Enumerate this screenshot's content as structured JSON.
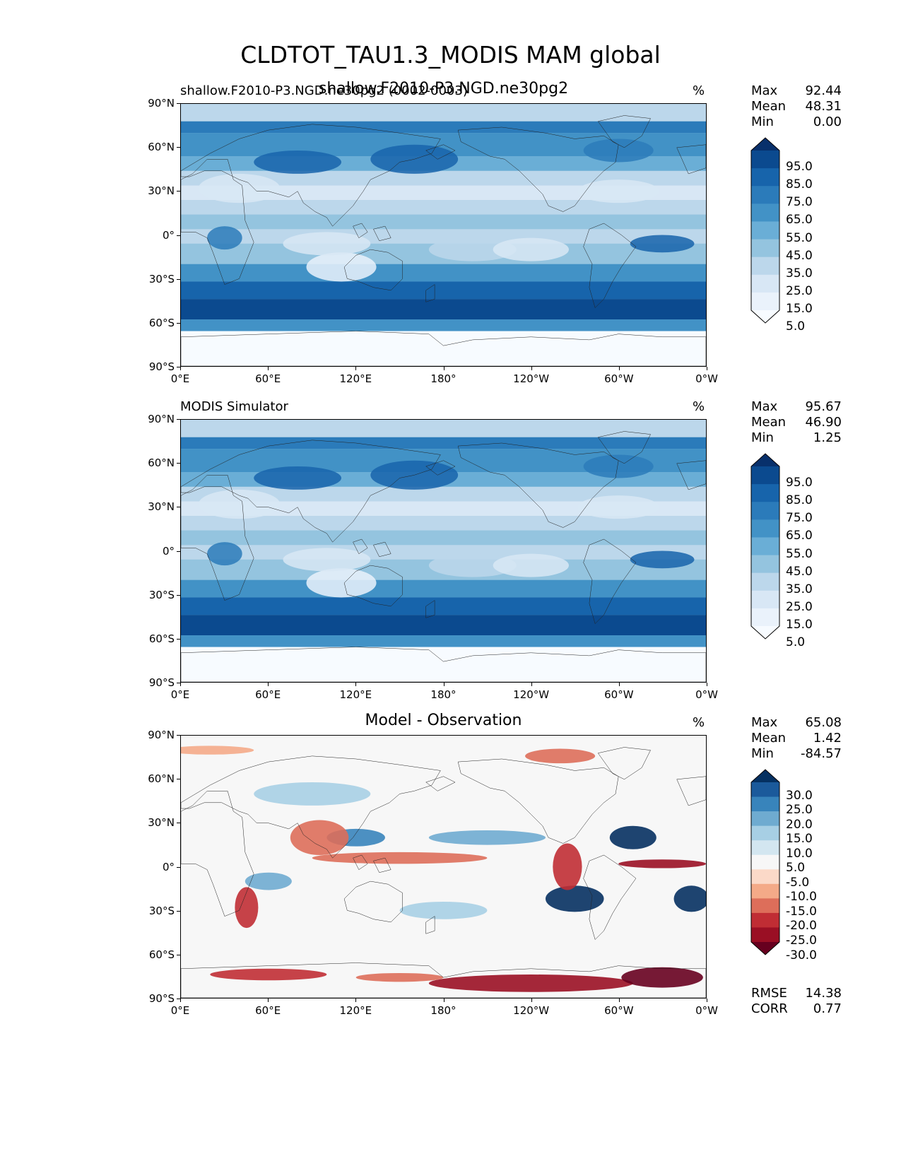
{
  "title": "CLDTOT_TAU1.3_MODIS MAM global",
  "lat_ticks": [
    "90°N",
    "60°N",
    "30°N",
    "0°",
    "30°S",
    "60°S",
    "90°S"
  ],
  "lon_ticks": [
    "0°E",
    "60°E",
    "120°E",
    "180°",
    "120°W",
    "60°W",
    "0°W"
  ],
  "panels": [
    {
      "left_title": "shallow.F2010-P3.NGD.ne30pg2 (0002-0003)",
      "center_title": "shallow.F2010-P3.NGD.ne30pg2",
      "unit": "%",
      "stats": [
        {
          "label": "Max",
          "value": "92.44"
        },
        {
          "label": "Mean",
          "value": "48.31"
        },
        {
          "label": "Min",
          "value": "0.00"
        }
      ],
      "colorbar": {
        "labels": [
          "95.0",
          "85.0",
          "75.0",
          "65.0",
          "55.0",
          "45.0",
          "35.0",
          "25.0",
          "15.0",
          "5.0"
        ],
        "colors": [
          "#08306b",
          "#0b4a8f",
          "#1764ab",
          "#2b7bba",
          "#4292c6",
          "#6aaed6",
          "#94c4df",
          "#bcd7eb",
          "#d8e7f5",
          "#eaf2fb",
          "#f7fbff"
        ]
      }
    },
    {
      "left_title": "MODIS Simulator",
      "center_title": "",
      "unit": "%",
      "stats": [
        {
          "label": "Max",
          "value": "95.67"
        },
        {
          "label": "Mean",
          "value": "46.90"
        },
        {
          "label": "Min",
          "value": "1.25"
        }
      ],
      "colorbar": {
        "labels": [
          "95.0",
          "85.0",
          "75.0",
          "65.0",
          "55.0",
          "45.0",
          "35.0",
          "25.0",
          "15.0",
          "5.0"
        ],
        "colors": [
          "#08306b",
          "#0b4a8f",
          "#1764ab",
          "#2b7bba",
          "#4292c6",
          "#6aaed6",
          "#94c4df",
          "#bcd7eb",
          "#d8e7f5",
          "#eaf2fb",
          "#f7fbff"
        ]
      }
    },
    {
      "left_title": "",
      "center_title": "Model - Observation",
      "unit": "%",
      "stats": [
        {
          "label": "Max",
          "value": "65.08"
        },
        {
          "label": "Mean",
          "value": "1.42"
        },
        {
          "label": "Min",
          "value": "-84.57"
        }
      ],
      "bottom_stats": [
        {
          "label": "RMSE",
          "value": "14.38"
        },
        {
          "label": "CORR",
          "value": "0.77"
        }
      ],
      "colorbar": {
        "labels": [
          "30.0",
          "25.0",
          "20.0",
          "15.0",
          "10.0",
          "5.0",
          "-5.0",
          "-10.0",
          "-15.0",
          "-20.0",
          "-25.0",
          "-30.0"
        ],
        "colors": [
          "#053061",
          "#1b5a9b",
          "#3884bb",
          "#6fabd0",
          "#a7cfe4",
          "#d3e6f0",
          "#f7f7f7",
          "#fbd9c8",
          "#f4aa88",
          "#dd6e5a",
          "#c02d34",
          "#9a0f24",
          "#67001f"
        ]
      }
    }
  ]
}
